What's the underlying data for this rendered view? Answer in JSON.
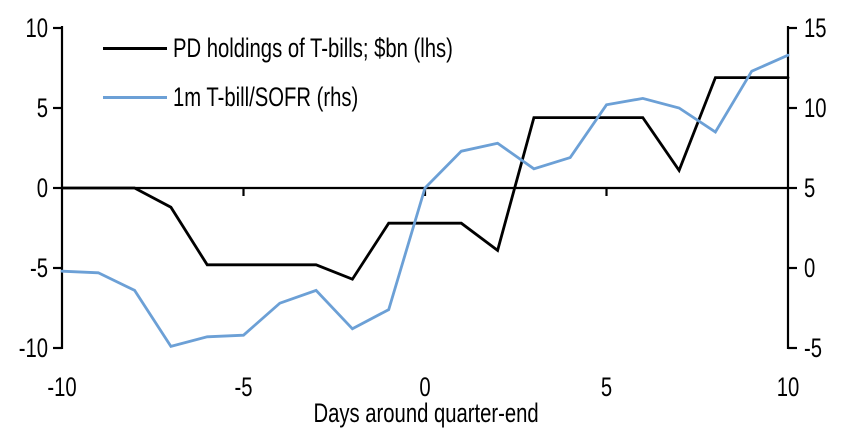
{
  "colors": {
    "background": "#FFFFFF",
    "text": "#000000",
    "axis": "#000000",
    "series_black": "#000000",
    "series_blue": "#6CA0D6"
  },
  "chart_data": {
    "type": "line",
    "title": "",
    "xlabel": "Days around quarter-end",
    "grid": false,
    "legend_position": "top-left",
    "x": [
      -10,
      -9,
      -8,
      -7,
      -6,
      -5,
      -4,
      -3,
      -2,
      -1,
      0,
      1,
      2,
      3,
      4,
      5,
      6,
      7,
      8,
      9,
      10
    ],
    "x_ticks": [
      -10,
      -5,
      0,
      5,
      10
    ],
    "axes": {
      "left": {
        "ticks": [
          10,
          5,
          0,
          -5,
          -10
        ],
        "range": [
          -10,
          10
        ]
      },
      "right": {
        "ticks": [
          15,
          10,
          5,
          0,
          -5
        ],
        "range": [
          -5,
          15
        ]
      }
    },
    "series": [
      {
        "name": "PD holdings of T-bills; $bn (lhs)",
        "axis": "left",
        "color": "#000000",
        "values": [
          0,
          0,
          0,
          -1.2,
          -4.8,
          -4.8,
          -4.8,
          -4.8,
          -5.7,
          -2.2,
          -2.2,
          -2.2,
          -3.9,
          4.4,
          4.4,
          4.4,
          4.4,
          1.1,
          6.9,
          6.9,
          6.9
        ]
      },
      {
        "name": "1m T-bill/SOFR (rhs)",
        "axis": "right",
        "color": "#6CA0D6",
        "values": [
          -0.2,
          -0.3,
          -1.4,
          -4.9,
          -4.3,
          -4.2,
          -2.2,
          -1.4,
          -3.8,
          -2.6,
          5.0,
          7.3,
          7.8,
          6.2,
          6.9,
          10.2,
          10.6,
          10.0,
          8.5,
          12.3,
          13.3
        ]
      }
    ]
  }
}
